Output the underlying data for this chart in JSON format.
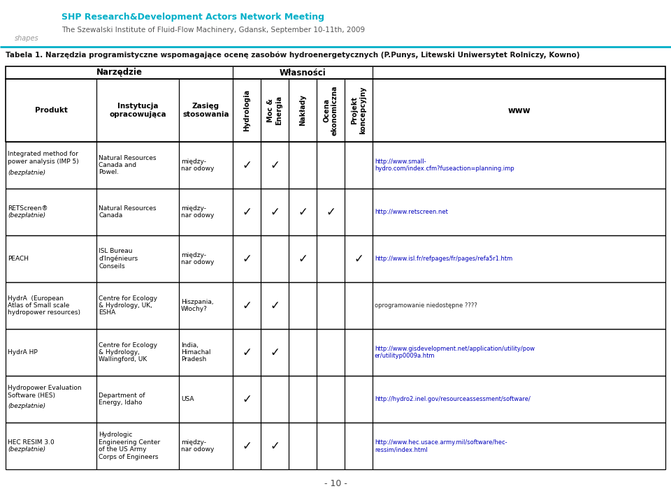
{
  "bg_color": "#ffffff",
  "header_line_color": "#00afc8",
  "title_line1": "SHP Research&Development Actors Network Meeting",
  "title_line2": "The Szewalski Institute of Fluid-Flow Machinery, Gdansk, September 10-11th, 2009",
  "table_title": "Tabela 1. Narzędzia programistyczne wspomagające ocenę zasobów hydroenergetycznych (P.Punys, Litewski Uniwersytet Rolniczy, Kowno)",
  "page_number": "- 10 -",
  "group_headers": [
    "Narzędzie",
    "Własności"
  ],
  "col_headers_normal": [
    "Produkt",
    "Instytucja\nopracowująca",
    "Zasięg\nstosowania"
  ],
  "col_headers_rotated": [
    "Hydrologia",
    "Moc &\nEnergia",
    "Nakłady",
    "Ocena\nekonomiczna",
    "Projekt\nkoncepcyjny"
  ],
  "col_header_www": "www",
  "rows": [
    {
      "produkt_main": "Integrated method for\npower analysis (IMP 5)",
      "produkt_italic": "(bezpłatnie)",
      "instytucja": "Natural Resources\nCanada and\nPowel.",
      "zasieg": "między-\nnar odowy",
      "checks": [
        true,
        true,
        false,
        false,
        false
      ],
      "www": "http://www.small-\nhydro.com/index.cfm?fuseaction=planning.imp",
      "www_is_link": true
    },
    {
      "produkt_main": "RETScreen®",
      "produkt_italic": "(bezpłatnie)",
      "instytucja": "Natural Resources\nCanada",
      "zasieg": "między-\nnar odowy",
      "checks": [
        true,
        true,
        true,
        true,
        false
      ],
      "www": "http://www.retscreen.net",
      "www_is_link": true
    },
    {
      "produkt_main": "PEACH",
      "produkt_italic": "",
      "instytucja": "ISL Bureau\nd'Ingénieurs\nConseils",
      "zasieg": "między-\nnar odowy",
      "checks": [
        true,
        false,
        true,
        false,
        true
      ],
      "www": "http://www.isl.fr/refpages/fr/pages/refa5r1.htm",
      "www_is_link": true
    },
    {
      "produkt_main": "HydrA  (European\nAtlas of Small scale\nhydropower resources)",
      "produkt_italic": "",
      "instytucja": "Centre for Ecology\n& Hydrology, UK,\nESHA",
      "zasieg": "Hiszpania,\nWłochy?",
      "checks": [
        true,
        true,
        false,
        false,
        false
      ],
      "www": "oprogramowanie niedostępne ????",
      "www_is_link": false
    },
    {
      "produkt_main": "HydrA HP",
      "produkt_italic": "",
      "instytucja": "Centre for Ecology\n& Hydrology,\nWallingford, UK",
      "zasieg": "India,\nHimachal\nPradesh",
      "checks": [
        true,
        true,
        false,
        false,
        false
      ],
      "www": "http://www.gisdevelopment.net/application/utility/pow\ner/utilityp0009a.htm",
      "www_is_link": true
    },
    {
      "produkt_main": "Hydropower Evaluation\nSoftware (HES)",
      "produkt_italic": "(bezpłatnie)",
      "instytucja": "Department of\nEnergy, Idaho",
      "zasieg": "USA",
      "checks": [
        true,
        false,
        false,
        false,
        false
      ],
      "www": "http://hydro2.inel.gov/resourceassessment/software/",
      "www_is_link": true
    },
    {
      "produkt_main": "HEC RESIM 3.0",
      "produkt_italic": "(bezpłatnie)",
      "instytucja": "Hydrologic\nEngineering Center\nof the US Army\nCorps of Engineers",
      "zasieg": "między-\nnar odowy",
      "checks": [
        true,
        true,
        false,
        false,
        false
      ],
      "www": "http://www.hec.usace.army.mil/software/hec-\nressim/index.html",
      "www_is_link": true
    }
  ]
}
